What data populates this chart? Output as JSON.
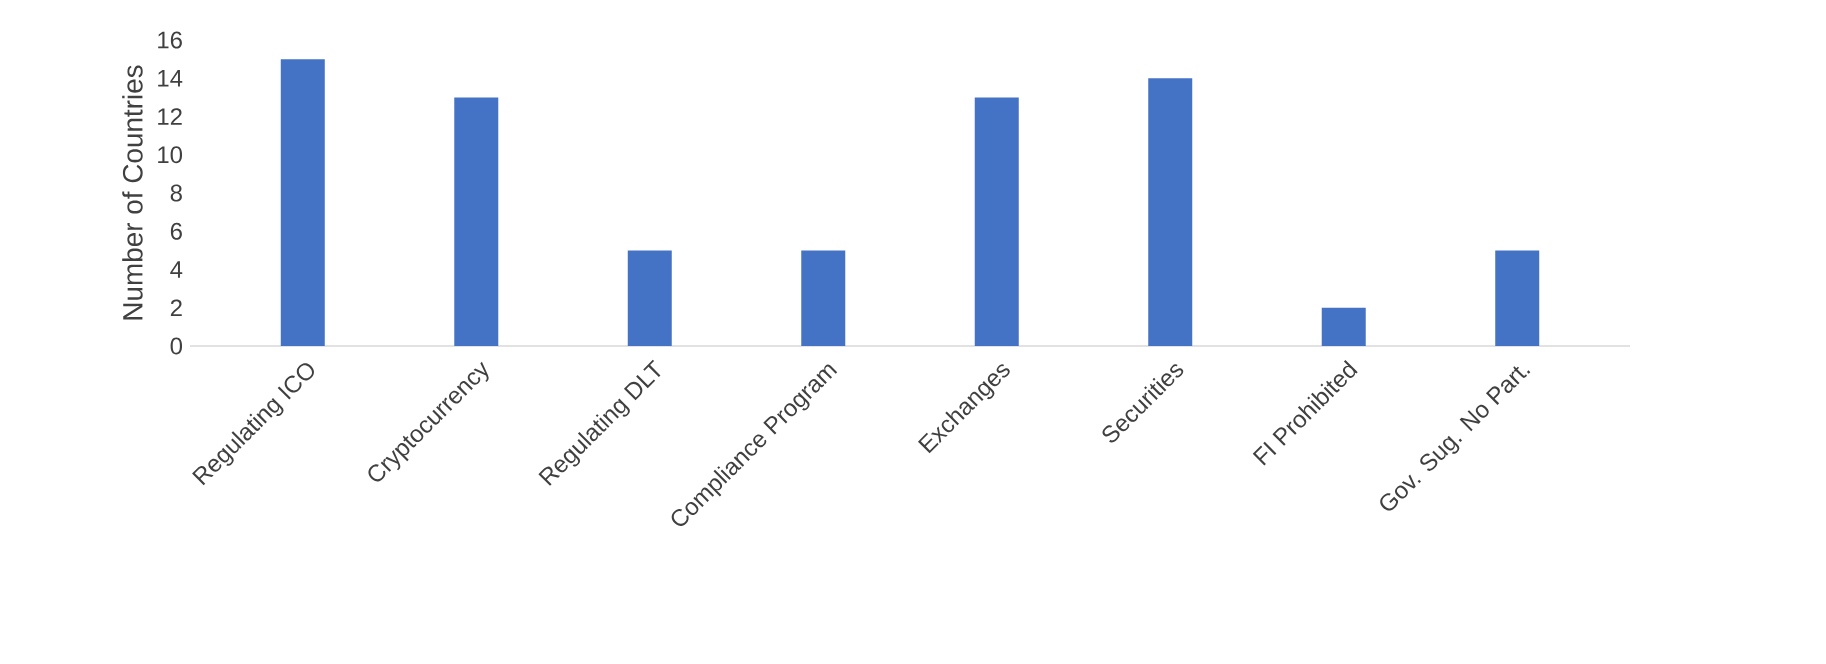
{
  "chart_data": {
    "type": "bar",
    "ylabel": "Number of Countries",
    "categories": [
      "Regulating ICO",
      "Cryptocurrency",
      "Regulating DLT",
      "Compliance Program",
      "Exchanges",
      "Securities",
      "FI Prohibited",
      "Gov. Sug. No Part."
    ],
    "values": [
      15,
      13,
      5,
      5,
      13,
      14,
      2,
      5
    ],
    "color": "#4472c4",
    "ylim": [
      0,
      16
    ],
    "yticks": [
      0,
      2,
      4,
      6,
      8,
      10,
      12,
      14,
      16
    ]
  }
}
